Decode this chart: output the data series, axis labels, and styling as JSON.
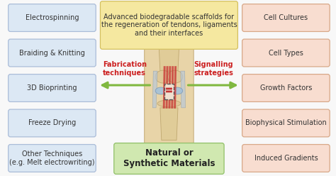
{
  "title": "Advanced biodegradable scaffolds for\nthe regeneration of tendons, ligaments\nand their interfaces",
  "title_box_color": "#f5e8a0",
  "title_box_edge": "#d4c060",
  "bottom_box_text": "Natural or\nSynthetic Materials",
  "bottom_box_color": "#d0e8b0",
  "bottom_box_edge": "#90c068",
  "left_boxes": [
    "Electrospinning",
    "Braiding & Knitting",
    "3D Bioprinting",
    "Freeze Drying",
    "Other Techniques\n(e.g. Melt electrowriting)"
  ],
  "right_boxes": [
    "Cell Cultures",
    "Cell Types",
    "Growth Factors",
    "Biophysical Stimulation",
    "Induced Gradients"
  ],
  "left_box_color": "#dce8f4",
  "left_box_edge": "#aabcd8",
  "right_box_color": "#f8ddd0",
  "right_box_edge": "#d8a888",
  "arrow_left_label": "Fabrication\ntechniques",
  "arrow_right_label": "Signalling\nstrategies",
  "arrow_color": "#80b840",
  "arrow_label_color": "#cc2020",
  "bg_color": "#f8f8f8"
}
